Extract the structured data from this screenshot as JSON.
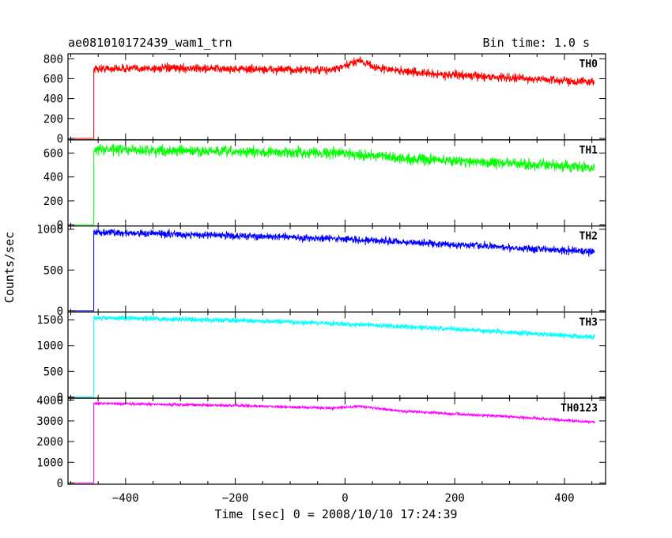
{
  "chart_data": {
    "type": "line",
    "title": "ae081010172439_wam1_trn",
    "bin_time_label": "Bin time: 1.0 s",
    "xlabel": "Time [sec] 0 = 2008/10/10 17:24:39",
    "ylabel": "Counts/sec",
    "xlim": [
      -505,
      475
    ],
    "x_ticks": [
      -400,
      -200,
      0,
      200,
      400
    ],
    "trigger_time": -458,
    "x_end": 455,
    "grid": false,
    "panels": [
      {
        "name": "TH0",
        "color": "#ff0000",
        "ylim": [
          -15,
          850
        ],
        "y_ticks": [
          0,
          200,
          400,
          600,
          800
        ],
        "pre_level": 0,
        "noise": 38,
        "profile": [
          {
            "x": -458,
            "y": 700
          },
          {
            "x": -300,
            "y": 705
          },
          {
            "x": -100,
            "y": 690
          },
          {
            "x": -30,
            "y": 685
          },
          {
            "x": 0,
            "y": 720
          },
          {
            "x": 25,
            "y": 790
          },
          {
            "x": 60,
            "y": 705
          },
          {
            "x": 150,
            "y": 650
          },
          {
            "x": 300,
            "y": 610
          },
          {
            "x": 455,
            "y": 565
          }
        ]
      },
      {
        "name": "TH1",
        "color": "#00ff00",
        "ylim": [
          -10,
          710
        ],
        "y_ticks": [
          0,
          200,
          400,
          600
        ],
        "pre_level": 0,
        "noise": 40,
        "profile": [
          {
            "x": -458,
            "y": 630
          },
          {
            "x": -200,
            "y": 610
          },
          {
            "x": 0,
            "y": 600
          },
          {
            "x": 100,
            "y": 555
          },
          {
            "x": 250,
            "y": 525
          },
          {
            "x": 455,
            "y": 475
          }
        ]
      },
      {
        "name": "TH2",
        "color": "#0000ff",
        "ylim": [
          -15,
          1040
        ],
        "y_ticks": [
          0,
          500,
          1000
        ],
        "pre_level": 0,
        "noise": 40,
        "profile": [
          {
            "x": -458,
            "y": 965
          },
          {
            "x": -200,
            "y": 920
          },
          {
            "x": 0,
            "y": 880
          },
          {
            "x": 200,
            "y": 810
          },
          {
            "x": 455,
            "y": 725
          }
        ]
      },
      {
        "name": "TH3",
        "color": "#00ffff",
        "ylim": [
          -20,
          1650
        ],
        "y_ticks": [
          0,
          500,
          1000,
          1500
        ],
        "pre_level": 0,
        "noise": 45,
        "profile": [
          {
            "x": -458,
            "y": 1540
          },
          {
            "x": -200,
            "y": 1490
          },
          {
            "x": 0,
            "y": 1420
          },
          {
            "x": 200,
            "y": 1320
          },
          {
            "x": 455,
            "y": 1165
          }
        ]
      },
      {
        "name": "TH0123",
        "color": "#ff00ff",
        "ylim": [
          -60,
          4100
        ],
        "y_ticks": [
          0,
          1000,
          2000,
          3000,
          4000
        ],
        "pre_level": 0,
        "noise": 60,
        "profile": [
          {
            "x": -458,
            "y": 3850
          },
          {
            "x": -200,
            "y": 3740
          },
          {
            "x": -30,
            "y": 3620
          },
          {
            "x": 25,
            "y": 3700
          },
          {
            "x": 100,
            "y": 3480
          },
          {
            "x": 300,
            "y": 3200
          },
          {
            "x": 455,
            "y": 2940
          }
        ]
      }
    ]
  }
}
